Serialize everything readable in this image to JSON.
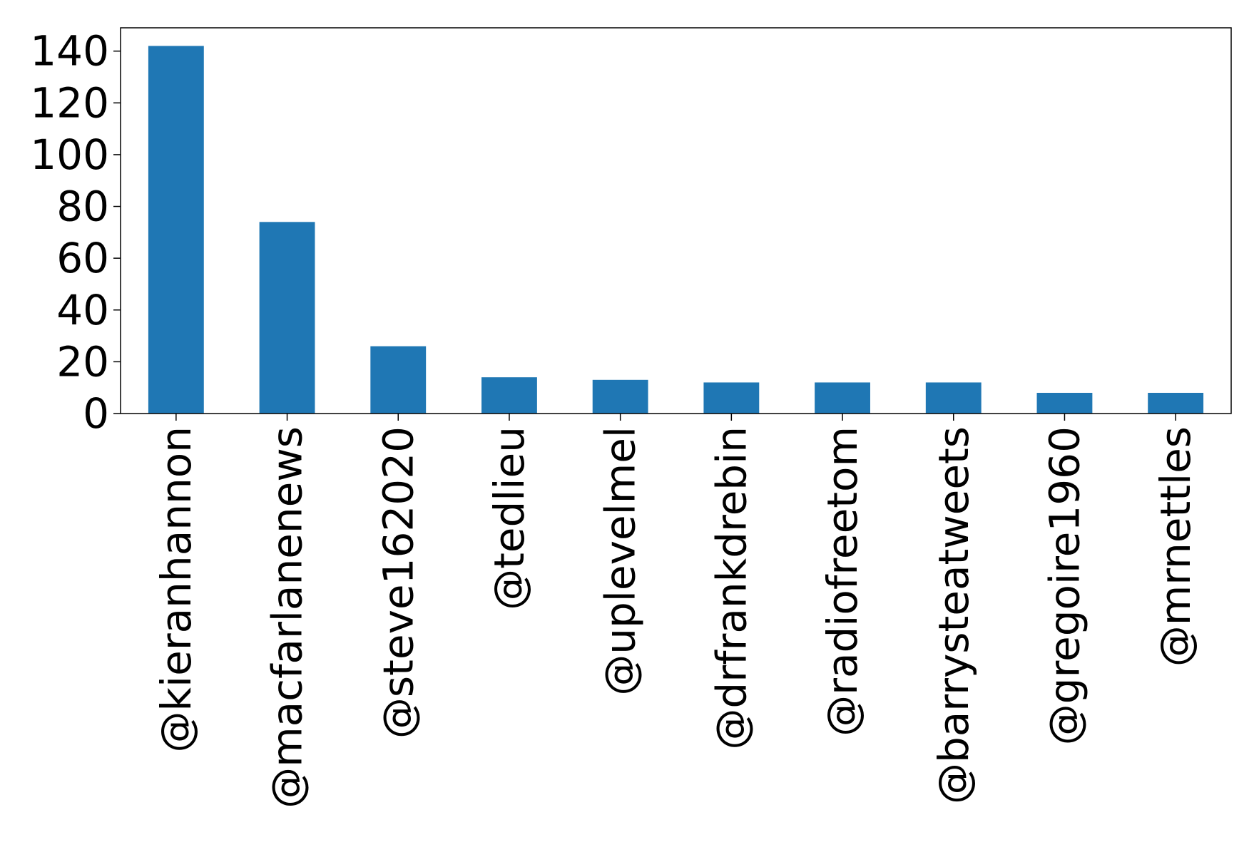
{
  "chart_data": {
    "type": "bar",
    "title": "",
    "xlabel": "",
    "ylabel": "",
    "categories": [
      "@kieranhannon",
      "@macfarlanenews",
      "@steve162020",
      "@tedlieu",
      "@uplevelmel",
      "@drfrankdrebin",
      "@radiofreetom",
      "@barrysteatweets",
      "@gregoire1960",
      "@mrnettles"
    ],
    "values": [
      142,
      74,
      26,
      14,
      13,
      12,
      12,
      12,
      8,
      8
    ],
    "yticks": [
      0,
      20,
      40,
      60,
      80,
      100,
      120,
      140
    ],
    "ylim": [
      0,
      149
    ],
    "grid": false,
    "legend": "none",
    "bar_color": "#1f77b4"
  }
}
